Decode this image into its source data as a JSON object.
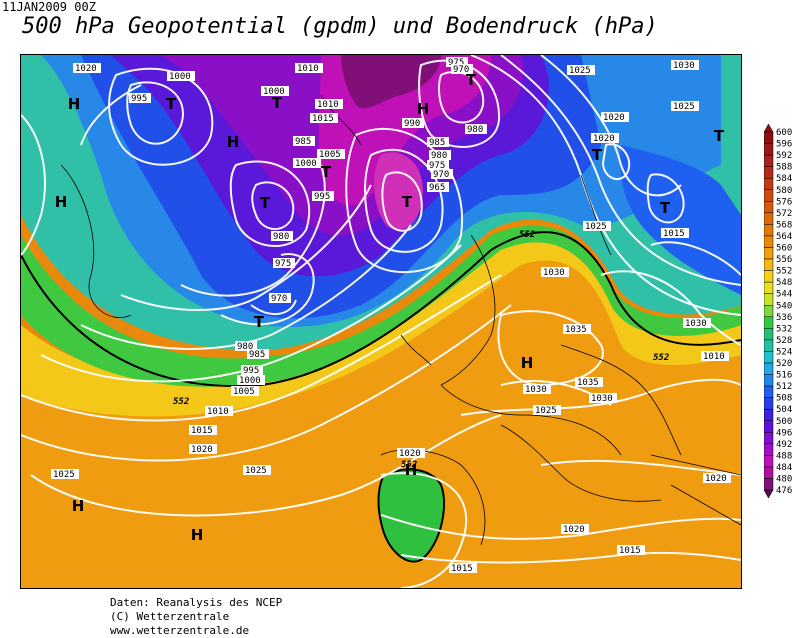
{
  "header": {
    "date": "11JAN2009 00Z",
    "title": "500 hPa Geopotential (gpdm) und Bodendruck (hPa)"
  },
  "legend": {
    "values": [
      "600",
      "596",
      "592",
      "588",
      "584",
      "580",
      "576",
      "572",
      "568",
      "564",
      "560",
      "556",
      "552",
      "548",
      "544",
      "540",
      "536",
      "532",
      "528",
      "524",
      "520",
      "516",
      "512",
      "508",
      "504",
      "500",
      "496",
      "492",
      "488",
      "484",
      "480",
      "476"
    ],
    "colors": [
      "#8a1010",
      "#9a1818",
      "#a82020",
      "#b52a18",
      "#c23a14",
      "#cc4a10",
      "#d45a0e",
      "#dc6a0c",
      "#e27a0a",
      "#e88a08",
      "#eea010",
      "#f2b814",
      "#f6d01c",
      "#e8e020",
      "#c8e428",
      "#7fd640",
      "#2ecc40",
      "#22c070",
      "#20c0a0",
      "#20c0d0",
      "#20a8e8",
      "#2088f0",
      "#2060f0",
      "#2840e8",
      "#4020e0",
      "#6010d8",
      "#8010d0",
      "#a010c8",
      "#c010b8",
      "#b010a0",
      "#801078",
      "#501050"
    ]
  },
  "map": {
    "highs": [
      "H",
      "H",
      "H",
      "H",
      "H",
      "H",
      "H",
      "H"
    ],
    "lows": [
      "T",
      "T",
      "T",
      "T",
      "T",
      "T",
      "T",
      "T",
      "T",
      "T"
    ],
    "isobar_labels": [
      "1020",
      "1000",
      "995",
      "1010",
      "1000",
      "1010",
      "1015",
      "975",
      "970",
      "985",
      "980",
      "990",
      "995",
      "1005",
      "1000",
      "985",
      "980",
      "975",
      "970",
      "965",
      "980",
      "975",
      "970",
      "980",
      "985",
      "995",
      "1005",
      "1000",
      "1010",
      "1015",
      "1020",
      "1025",
      "1025",
      "1025",
      "1030",
      "1020",
      "1020",
      "1025",
      "1015",
      "1030",
      "1025",
      "1035",
      "1030",
      "1035",
      "1030",
      "1025",
      "1020",
      "1020",
      "1015",
      "1015",
      "1020",
      "1030",
      "1015",
      "1010"
    ],
    "contour_labels_552": [
      "552",
      "552",
      "552",
      "552"
    ]
  },
  "footer": {
    "line1": "Daten: Reanalysis des NCEP",
    "line2": "(C) Wetterzentrale",
    "line3": "www.wetterzentrale.de"
  }
}
